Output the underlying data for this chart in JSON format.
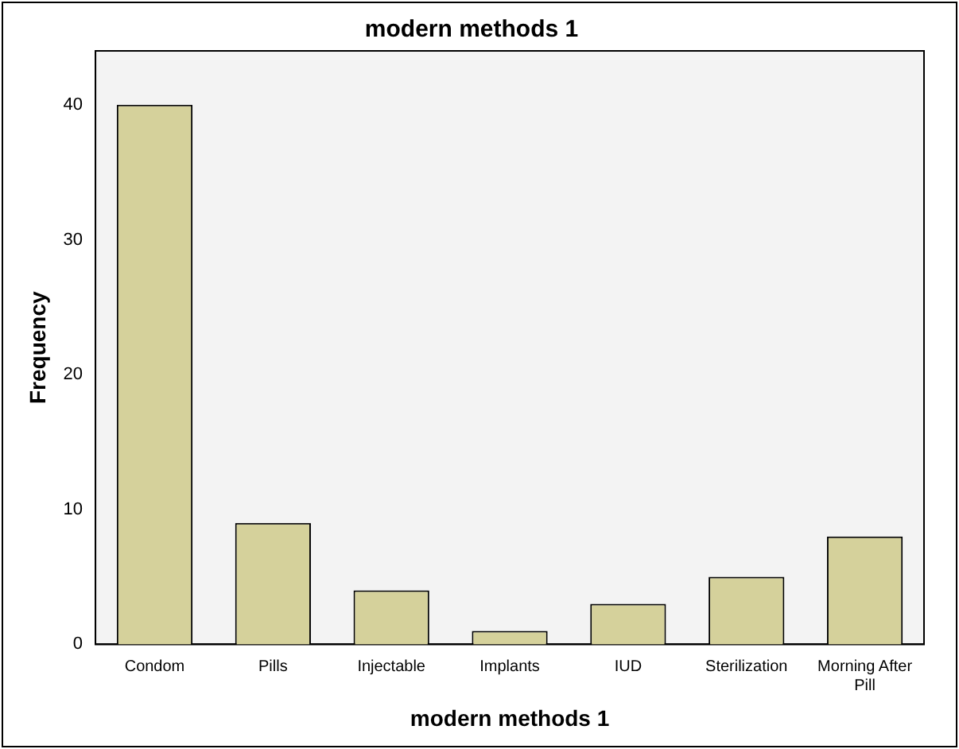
{
  "chart_data": {
    "type": "bar",
    "title": "modern methods 1",
    "xlabel": "modern methods 1",
    "ylabel": "Frequency",
    "categories": [
      "Condom",
      "Pills",
      "Injectable",
      "Implants",
      "IUD",
      "Sterilization",
      "Morning After Pill"
    ],
    "values": [
      40,
      9,
      4,
      1,
      3,
      5,
      8
    ],
    "color": "#d5d19b",
    "ylim": [
      0,
      44
    ],
    "yticks": [
      0,
      10,
      20,
      30,
      40
    ],
    "grid": false,
    "legend": false
  }
}
